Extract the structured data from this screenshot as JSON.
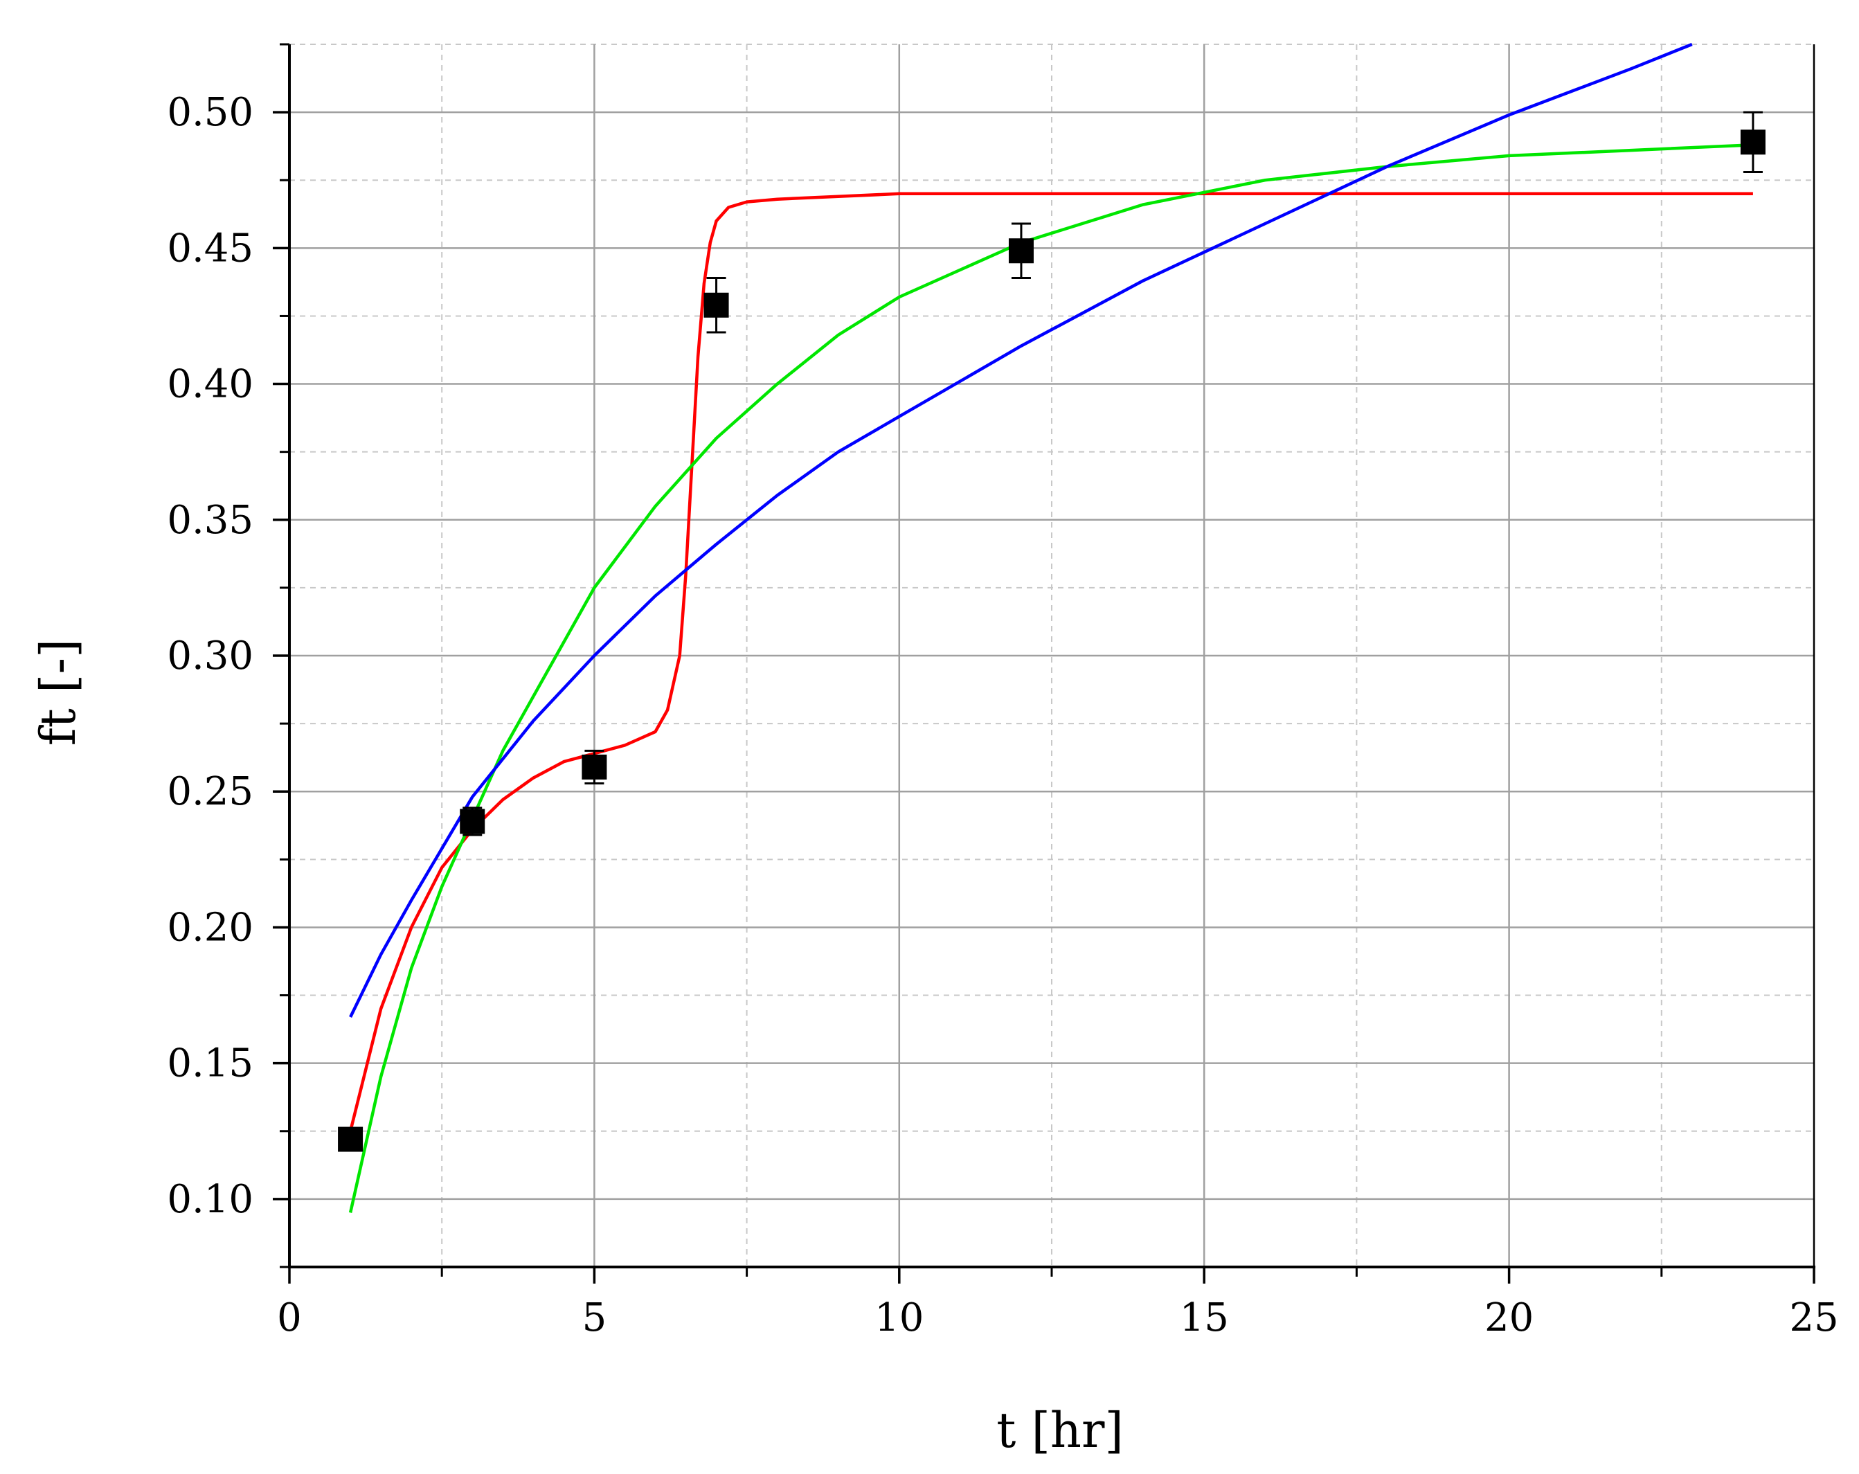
{
  "chart_data": {
    "type": "line",
    "title": "",
    "xlabel": "t [hr]",
    "ylabel": "ft [-]",
    "xlim": [
      0,
      25
    ],
    "ylim": [
      0.075,
      0.525
    ],
    "xticks": [
      0,
      5,
      10,
      15,
      20,
      25
    ],
    "xtick_labels": [
      "0",
      "5",
      "10",
      "15",
      "20",
      "25"
    ],
    "yticks": [
      0.1,
      0.15,
      0.2,
      0.25,
      0.3,
      0.35,
      0.4,
      0.45,
      0.5
    ],
    "ytick_labels": [
      "0.10",
      "0.15",
      "0.20",
      "0.25",
      "0.30",
      "0.35",
      "0.40",
      "0.45",
      "0.50"
    ],
    "grid": true,
    "legend": "none",
    "measured": {
      "marker": "square",
      "color": "#000000",
      "x": [
        1,
        3,
        5,
        7,
        12,
        24
      ],
      "y": [
        0.122,
        0.239,
        0.259,
        0.429,
        0.449,
        0.489
      ],
      "error": [
        0.002,
        0.005,
        0.006,
        0.01,
        0.01,
        0.011
      ]
    },
    "series": [
      {
        "color": "#ff0000",
        "x": [
          1,
          1.5,
          2,
          2.5,
          3,
          3.5,
          4,
          4.5,
          5,
          5.5,
          6,
          6.2,
          6.4,
          6.5,
          6.6,
          6.7,
          6.8,
          6.9,
          7,
          7.2,
          7.5,
          8,
          9,
          10,
          12,
          15,
          20,
          24
        ],
        "y": [
          0.125,
          0.17,
          0.2,
          0.222,
          0.236,
          0.247,
          0.255,
          0.261,
          0.264,
          0.267,
          0.272,
          0.28,
          0.3,
          0.33,
          0.37,
          0.41,
          0.437,
          0.452,
          0.46,
          0.465,
          0.467,
          0.468,
          0.469,
          0.47,
          0.47,
          0.47,
          0.47,
          0.47
        ]
      },
      {
        "color": "#00e600",
        "x": [
          1,
          1.5,
          2,
          2.5,
          3,
          3.5,
          4,
          5,
          6,
          7,
          8,
          9,
          10,
          12,
          14,
          16,
          18,
          20,
          22,
          24
        ],
        "y": [
          0.095,
          0.145,
          0.185,
          0.215,
          0.24,
          0.265,
          0.285,
          0.325,
          0.355,
          0.38,
          0.4,
          0.418,
          0.432,
          0.452,
          0.466,
          0.475,
          0.48,
          0.484,
          0.486,
          0.488
        ]
      },
      {
        "color": "#0000ff",
        "x": [
          1,
          1.5,
          2,
          3,
          4,
          5,
          6,
          7,
          8,
          9,
          10,
          12,
          14,
          16,
          18,
          20,
          22,
          23
        ],
        "y": [
          0.167,
          0.19,
          0.21,
          0.248,
          0.276,
          0.3,
          0.322,
          0.341,
          0.359,
          0.375,
          0.388,
          0.414,
          0.438,
          0.459,
          0.48,
          0.499,
          0.516,
          0.525
        ]
      }
    ]
  }
}
